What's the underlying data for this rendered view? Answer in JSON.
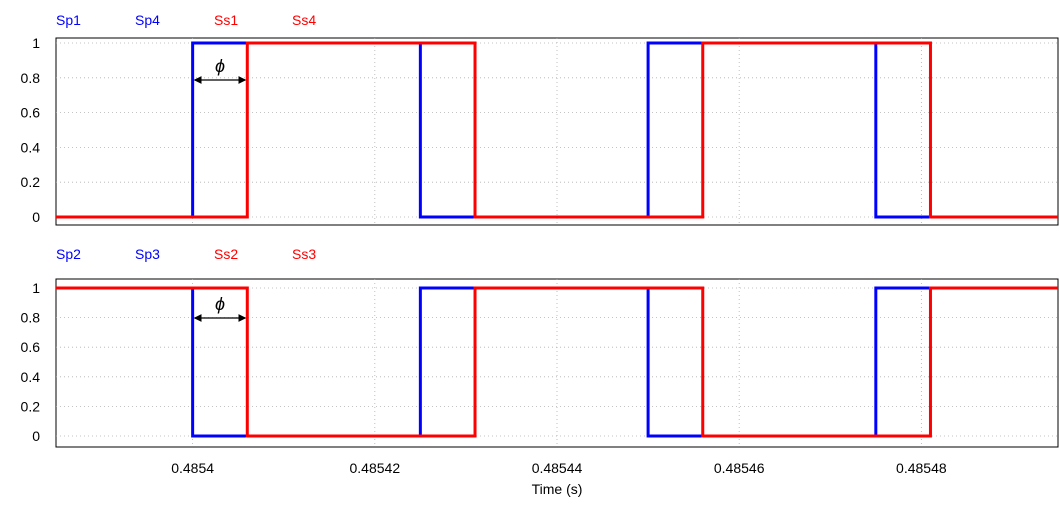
{
  "chart_data": [
    {
      "type": "line",
      "legend": [
        {
          "name": "Sp1",
          "color": "#0000ff"
        },
        {
          "name": "Sp4",
          "color": "#0000ff"
        },
        {
          "name": "Ss1",
          "color": "#ff0000"
        },
        {
          "name": "Ss4",
          "color": "#ff0000"
        }
      ],
      "ylim": [
        0,
        1
      ],
      "yticks": [
        "0",
        "0.2",
        "0.4",
        "0.6",
        "0.8",
        "1"
      ],
      "annotation": "ϕ",
      "phase_arrow": [
        0.4854,
        0.485406
      ],
      "series": [
        {
          "name": "Sp1 Sp4",
          "color": "#0000ff",
          "x": [
            0.4853,
            0.4854,
            0.4854,
            0.485425,
            0.485425,
            0.48545,
            0.48545,
            0.485475,
            0.485475,
            0.4855
          ],
          "y": [
            0,
            0,
            1,
            1,
            0,
            0,
            1,
            1,
            0,
            0
          ]
        },
        {
          "name": "Ss1 Ss4",
          "color": "#ff0000",
          "x": [
            0.4853,
            0.485406,
            0.485406,
            0.485431,
            0.485431,
            0.485456,
            0.485456,
            0.485481,
            0.485481,
            0.4855
          ],
          "y": [
            0,
            0,
            1,
            1,
            0,
            0,
            1,
            1,
            0,
            0
          ]
        }
      ]
    },
    {
      "type": "line",
      "legend": [
        {
          "name": "Sp2",
          "color": "#0000ff"
        },
        {
          "name": "Sp3",
          "color": "#0000ff"
        },
        {
          "name": "Ss2",
          "color": "#ff0000"
        },
        {
          "name": "Ss3",
          "color": "#ff0000"
        }
      ],
      "ylim": [
        0,
        1
      ],
      "yticks": [
        "0",
        "0.2",
        "0.4",
        "0.6",
        "0.8",
        "1"
      ],
      "annotation": "ϕ",
      "phase_arrow": [
        0.4854,
        0.485406
      ],
      "xlabel": "Time (s)",
      "xticks": [
        "0.4854",
        "0.48542",
        "0.48544",
        "0.48546",
        "0.48548"
      ],
      "xtick_values": [
        0.4854,
        0.48542,
        0.48544,
        0.48546,
        0.48548
      ],
      "series": [
        {
          "name": "Sp2 Sp3",
          "color": "#0000ff",
          "x": [
            0.4853,
            0.4854,
            0.4854,
            0.485425,
            0.485425,
            0.48545,
            0.48545,
            0.485475,
            0.485475,
            0.4855
          ],
          "y": [
            1,
            1,
            0,
            0,
            1,
            1,
            0,
            0,
            1,
            1
          ]
        },
        {
          "name": "Ss2 Ss3",
          "color": "#ff0000",
          "x": [
            0.4853,
            0.485406,
            0.485406,
            0.485431,
            0.485431,
            0.485456,
            0.485456,
            0.485481,
            0.485481,
            0.4855
          ],
          "y": [
            1,
            1,
            0,
            0,
            1,
            1,
            0,
            0,
            1,
            1
          ]
        }
      ]
    }
  ]
}
